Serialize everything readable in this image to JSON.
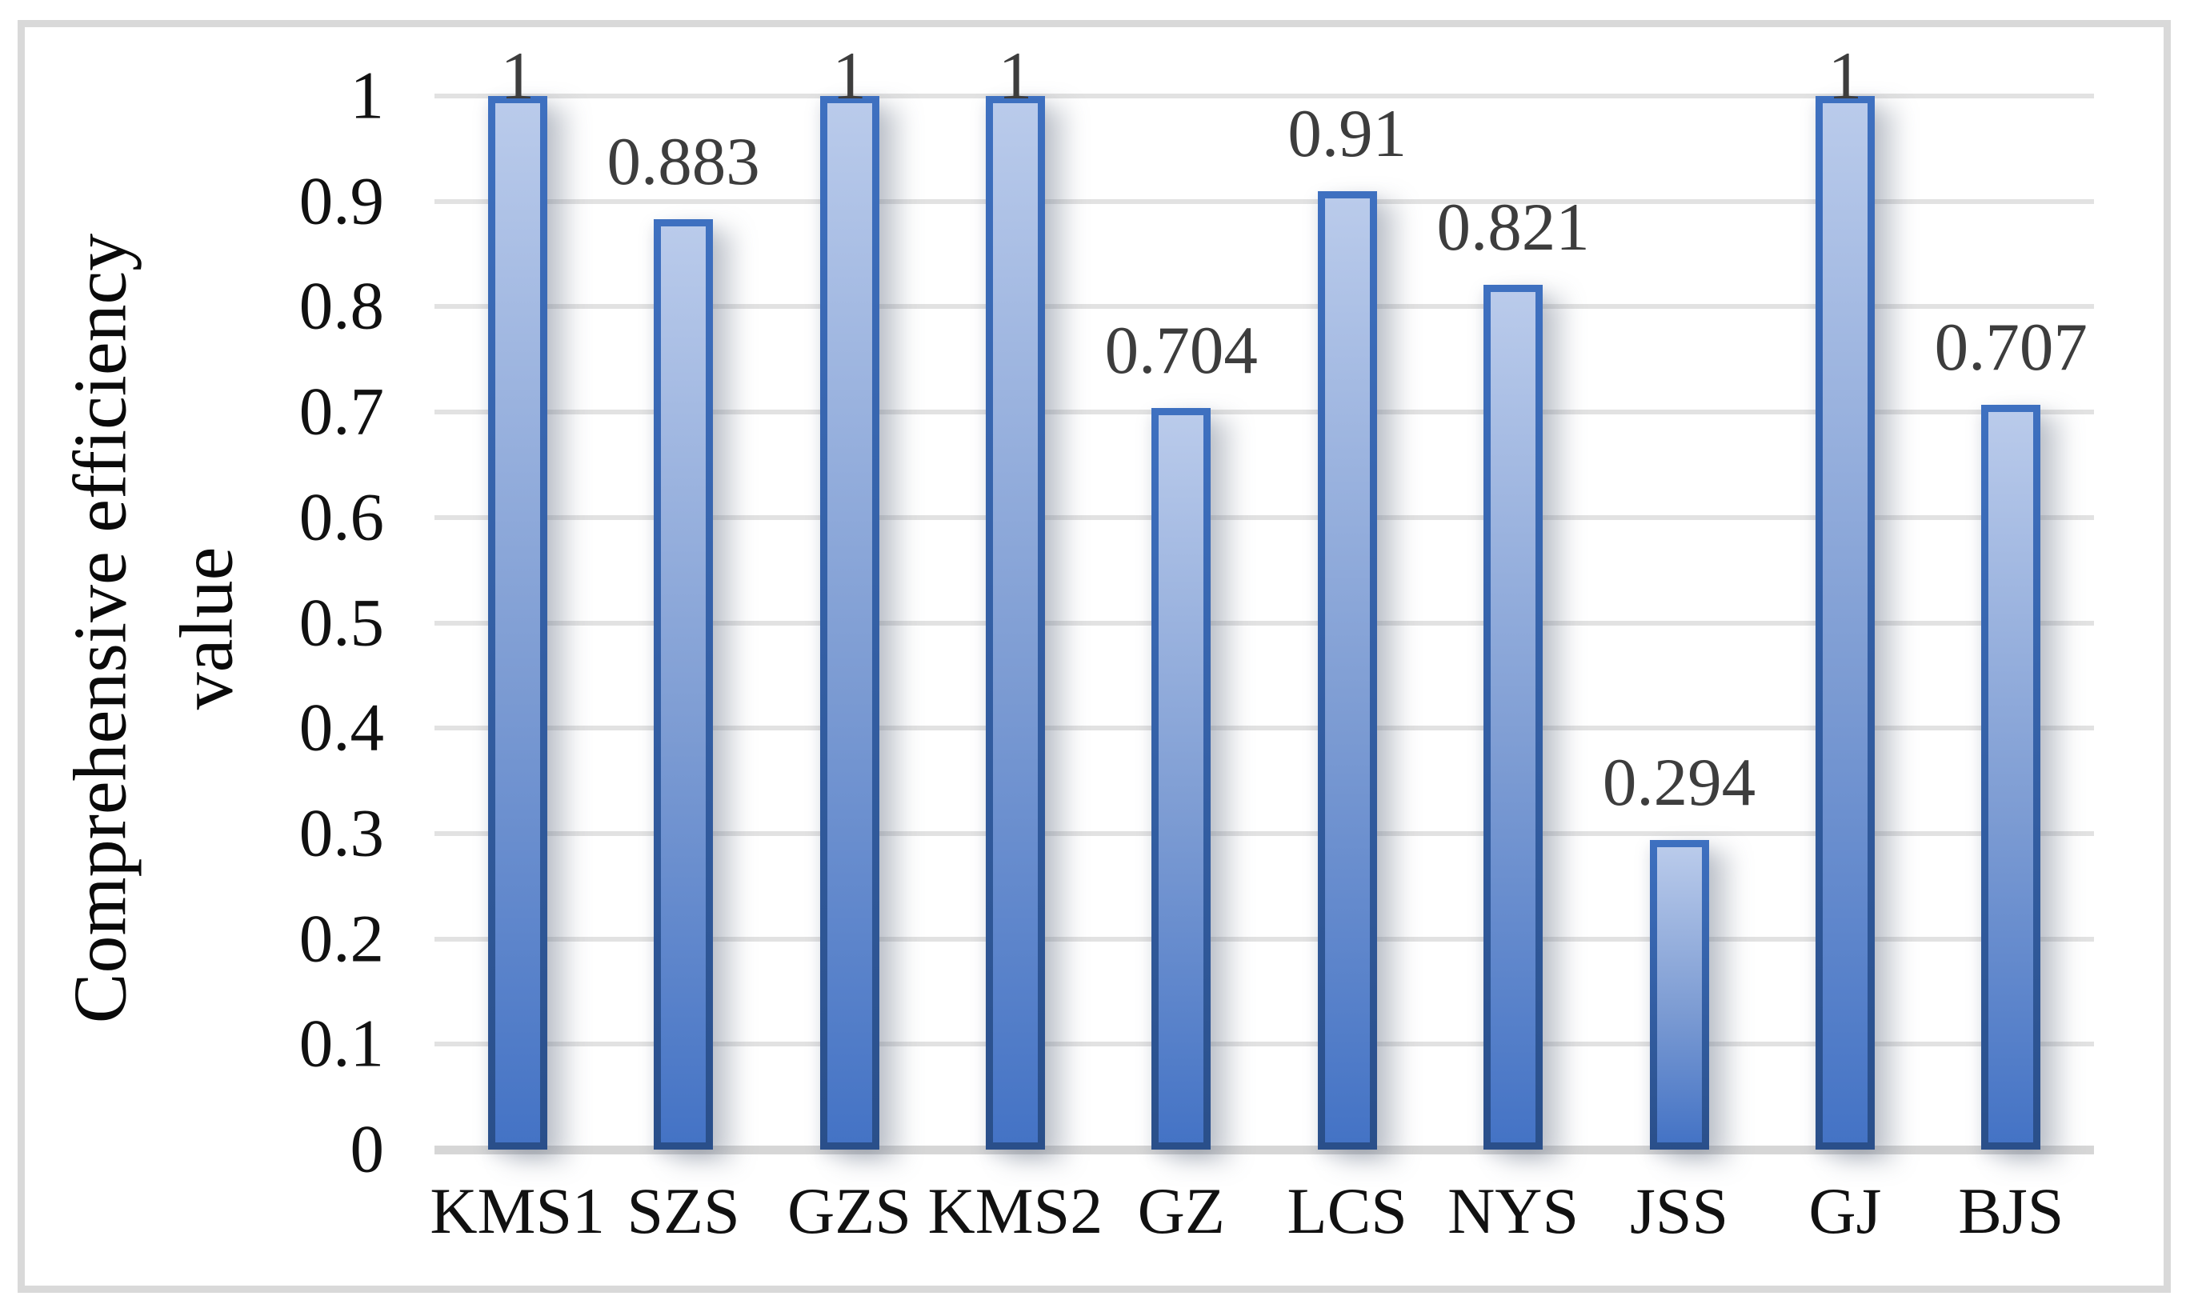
{
  "chart_data": {
    "type": "bar",
    "title": "",
    "xlabel": "",
    "ylabel": "Comprehensive efficiency value",
    "ylabel_lines": [
      "Comprehensive efficiency",
      "value"
    ],
    "categories": [
      "KMS1",
      "SZS",
      "GZS",
      "KMS2",
      "GZ",
      "LCS",
      "NYS",
      "JSS",
      "GJ",
      "BJS"
    ],
    "values": [
      1,
      0.883,
      1,
      1,
      0.704,
      0.91,
      0.821,
      0.294,
      1,
      0.707
    ],
    "labels": [
      "1",
      "0.883",
      "1",
      "1",
      "0.704",
      "0.91",
      "0.821",
      "0.294",
      "1",
      "0.707"
    ],
    "ylim": [
      0,
      1
    ],
    "ytick_step": 0.1,
    "yticks": [
      "0",
      "0.1",
      "0.2",
      "0.3",
      "0.4",
      "0.5",
      "0.6",
      "0.7",
      "0.8",
      "0.9",
      "1"
    ],
    "grid": true,
    "legend": "none",
    "colors": {
      "bar_fill_top": "#bacbeb",
      "bar_fill_mid": "#7d9cd3",
      "bar_fill_bottom": "#4473c5",
      "bar_border_top": "#3e70c0",
      "bar_border_bottom": "#2a4f8a",
      "gridline": "#e2e2e2",
      "axis_line": "#d6d6d6",
      "frame": "#d9d9d9",
      "data_label": "#3d3d3d",
      "tick_label": "#111111",
      "plot_background": "#ffffff"
    }
  }
}
